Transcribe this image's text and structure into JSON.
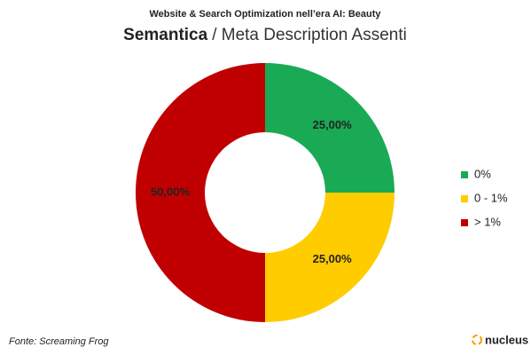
{
  "chart_data": {
    "type": "donut",
    "title": "Website & Search Optimization nell’era AI: Beauty",
    "subtitle_bold": "Semantica",
    "subtitle": "/ Meta Description Assenti",
    "categories": [
      "0%",
      "0 - 1%",
      "> 1%"
    ],
    "values": [
      25,
      25,
      50
    ],
    "value_labels": [
      "25,00%",
      "25,00%",
      "50,00%"
    ],
    "colors": [
      "#1aaa55",
      "#ffcc00",
      "#c00000"
    ],
    "legend": "right",
    "source": "Fonte: Screaming Frog",
    "logo": "nucleus"
  }
}
